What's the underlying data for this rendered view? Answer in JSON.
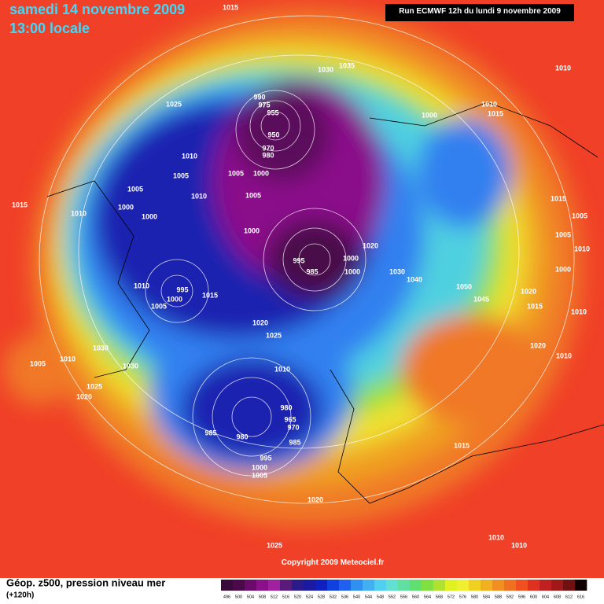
{
  "header": {
    "title": "samedi 14 novembre 2009",
    "time": "13:00 locale",
    "run": "Run ECMWF 12h du lundi 9 novembre 2009"
  },
  "footer": {
    "legend_label": "Géop. z500, pression niveau mer",
    "lead_time": "(+120h)",
    "copyright": "Copyright 2009 Meteociel.fr"
  },
  "colorbar": {
    "ticks": [
      496,
      500,
      504,
      508,
      512,
      516,
      520,
      524,
      528,
      532,
      536,
      540,
      544,
      548,
      552,
      556,
      560,
      564,
      568,
      572,
      576,
      580,
      584,
      588,
      592,
      596,
      600,
      604,
      608,
      612,
      616
    ],
    "colors": [
      "#3a0a3a",
      "#4a0a4a",
      "#6a0a6a",
      "#8a108a",
      "#a020a0",
      "#5a1a7a",
      "#2a1a8a",
      "#1a1aa0",
      "#1020c0",
      "#1040e0",
      "#2060f0",
      "#3090f0",
      "#40b0f0",
      "#50d0f0",
      "#60e0d0",
      "#60e0a0",
      "#60e070",
      "#80e040",
      "#b0e030",
      "#e0f020",
      "#f0f030",
      "#f0d020",
      "#f0b020",
      "#f09020",
      "#f07020",
      "#f05020",
      "#e03020",
      "#c02020",
      "#a01818",
      "#701010",
      "#100000"
    ]
  },
  "pressure_labels": [
    1015,
    1035,
    1030,
    1010,
    1025,
    990,
    975,
    955,
    1000,
    1010,
    1015,
    950,
    970,
    980,
    1010,
    1005,
    1005,
    1000,
    1005,
    1010,
    1005,
    1015,
    1010,
    1000,
    1000,
    1015,
    1005,
    1000,
    1020,
    1005,
    1010,
    995,
    985,
    1000,
    1000,
    1030,
    1040,
    1050,
    1000,
    1010,
    995,
    1015,
    1000,
    1005,
    1045,
    1020,
    1015,
    1010,
    1020,
    1025,
    1020,
    1010,
    1030,
    1005,
    1010,
    1030,
    1010,
    1025,
    1020,
    980,
    965,
    970,
    985,
    980,
    985,
    1015,
    995,
    1000,
    1005,
    1020,
    1025,
    1010,
    1010
  ]
}
